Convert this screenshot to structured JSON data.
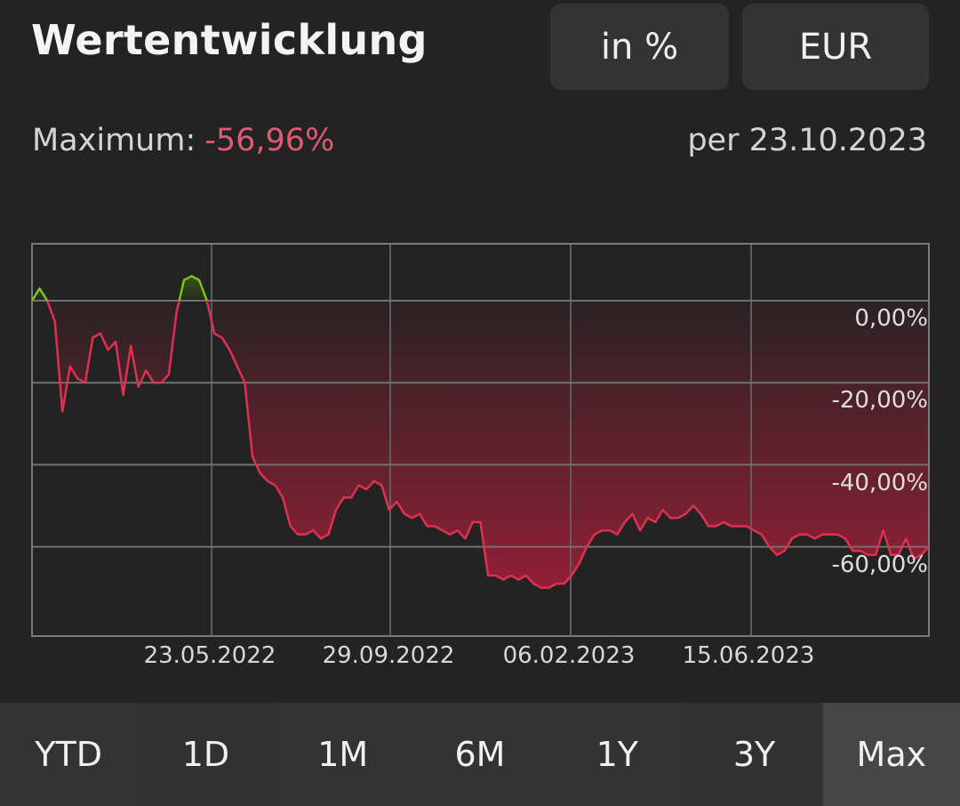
{
  "header": {
    "title": "Wertentwicklung",
    "unit_button": "in %",
    "currency_button": "EUR"
  },
  "summary": {
    "maximum_label": "Maximum:",
    "maximum_value": "-56,96%",
    "as_of": "per 23.10.2023"
  },
  "colors": {
    "background": "#232323",
    "negative": "#e0304f",
    "positive": "#7cc21b",
    "max_value_text": "#e05a73",
    "grid": "#6a6a6a"
  },
  "range_tabs": {
    "items": [
      {
        "label": "YTD"
      },
      {
        "label": "1D"
      },
      {
        "label": "1M"
      },
      {
        "label": "6M"
      },
      {
        "label": "1Y"
      },
      {
        "label": "3Y"
      },
      {
        "label": "Max"
      }
    ],
    "active": "Max"
  },
  "chart_data": {
    "type": "line",
    "title": "Wertentwicklung",
    "xlabel": "",
    "ylabel": "",
    "x_tick_labels": [
      "23.05.2022",
      "29.09.2022",
      "06.02.2023",
      "15.06.2023"
    ],
    "y_tick_labels": [
      "0,00%",
      "-20,00%",
      "-40,00%",
      "-60,00%"
    ],
    "y_ticks": [
      0,
      -20,
      -40,
      -60
    ],
    "ylim": [
      -81,
      14
    ],
    "grid": true,
    "legend": null,
    "series": [
      {
        "name": "Wertentwicklung in %",
        "x_range": [
          "2022-01",
          "2023-10-23"
        ],
        "values": [
          0,
          3,
          0,
          -5,
          -27,
          -16,
          -19,
          -20,
          -9,
          -8,
          -12,
          -10,
          -23,
          -11,
          -21,
          -17,
          -20,
          -20,
          -18,
          -3,
          5,
          6,
          5,
          0,
          -8,
          -9,
          -12,
          -16,
          -20,
          -38,
          -42,
          -44,
          -45,
          -48,
          -55,
          -57,
          -57,
          -56,
          -58,
          -57,
          -51,
          -48,
          -48,
          -45,
          -46,
          -44,
          -45,
          -51,
          -49,
          -52,
          -53,
          -52,
          -55,
          -55,
          -56,
          -57,
          -56,
          -58,
          -54,
          -54,
          -67,
          -67,
          -68,
          -67,
          -68,
          -67,
          -69,
          -70,
          -70,
          -69,
          -69,
          -67,
          -64,
          -60,
          -57,
          -56,
          -56,
          -57,
          -54,
          -52,
          -56,
          -53,
          -54,
          -51,
          -53,
          -53,
          -52,
          -50,
          -52,
          -55,
          -55,
          -54,
          -55,
          -55,
          -55,
          -56,
          -57,
          -60,
          -62,
          -61,
          -58,
          -57,
          -57,
          -58,
          -57,
          -57,
          -57,
          -58,
          -61,
          -61,
          -62,
          -62,
          -56,
          -62,
          -62,
          -58,
          -63,
          -62,
          -60
        ]
      }
    ],
    "annotations": [
      "Maximum: -56,96%",
      "per 23.10.2023"
    ]
  }
}
